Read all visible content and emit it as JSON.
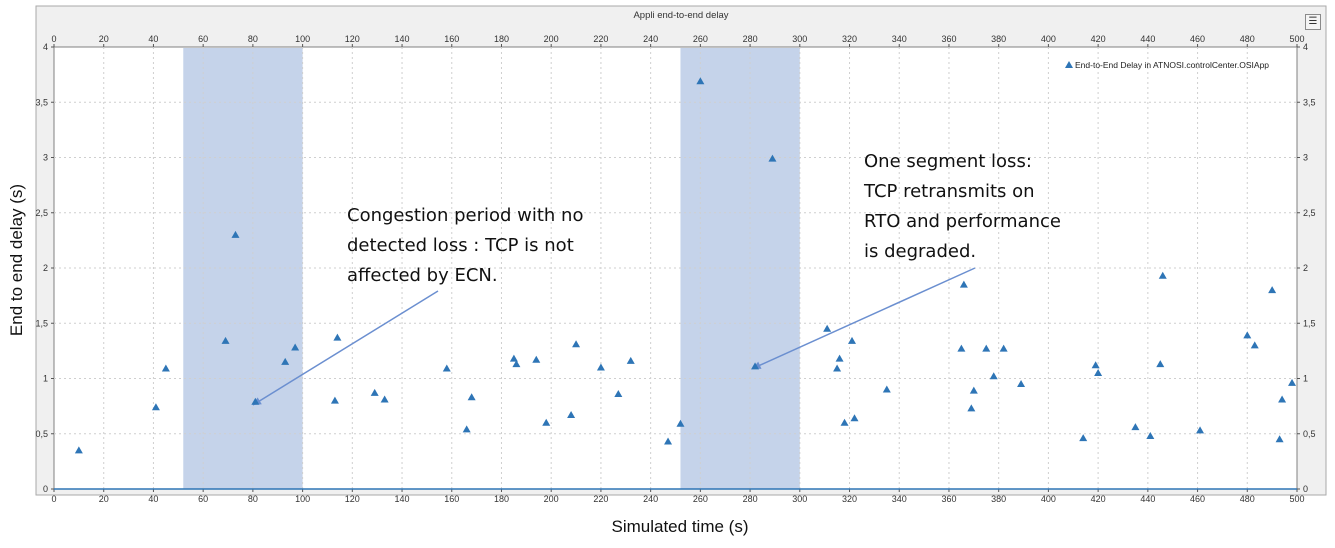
{
  "chart_data": {
    "type": "scatter",
    "title": "Appli end-to-end delay",
    "xlabel": "Simulated time (s)",
    "ylabel": "End to end delay (s)",
    "xlim": [
      0,
      500
    ],
    "ylim": [
      0,
      4
    ],
    "xticks": [
      "0",
      "20",
      "40",
      "60",
      "80",
      "100",
      "120",
      "140",
      "160",
      "180",
      "200",
      "220",
      "240",
      "260",
      "280",
      "300",
      "320",
      "340",
      "360",
      "380",
      "400",
      "420",
      "440",
      "460",
      "480",
      "500"
    ],
    "yticks": [
      "0",
      "0,5",
      "1",
      "1,5",
      "2",
      "2,5",
      "3",
      "3,5",
      "4"
    ],
    "grid": true,
    "legend_position": "top-right",
    "series": [
      {
        "name": "End-to-End Delay in ATNOSI.controlCenter.OSIApp",
        "color": "#2e75b6",
        "marker": "triangle",
        "points": [
          {
            "x": 10,
            "y": 0.35
          },
          {
            "x": 41,
            "y": 0.74
          },
          {
            "x": 45,
            "y": 1.09
          },
          {
            "x": 69,
            "y": 1.34
          },
          {
            "x": 73,
            "y": 2.3
          },
          {
            "x": 81,
            "y": 0.79
          },
          {
            "x": 93,
            "y": 1.15
          },
          {
            "x": 97,
            "y": 1.28
          },
          {
            "x": 113,
            "y": 0.8
          },
          {
            "x": 114,
            "y": 1.37
          },
          {
            "x": 129,
            "y": 0.87
          },
          {
            "x": 133,
            "y": 0.81
          },
          {
            "x": 158,
            "y": 1.09
          },
          {
            "x": 166,
            "y": 0.54
          },
          {
            "x": 168,
            "y": 0.83
          },
          {
            "x": 185,
            "y": 1.18
          },
          {
            "x": 186,
            "y": 1.13
          },
          {
            "x": 194,
            "y": 1.17
          },
          {
            "x": 198,
            "y": 0.6
          },
          {
            "x": 208,
            "y": 0.67
          },
          {
            "x": 210,
            "y": 1.31
          },
          {
            "x": 220,
            "y": 1.1
          },
          {
            "x": 227,
            "y": 0.86
          },
          {
            "x": 232,
            "y": 1.16
          },
          {
            "x": 247,
            "y": 0.43
          },
          {
            "x": 252,
            "y": 0.59
          },
          {
            "x": 260,
            "y": 3.69
          },
          {
            "x": 282,
            "y": 1.11
          },
          {
            "x": 289,
            "y": 2.99
          },
          {
            "x": 311,
            "y": 1.45
          },
          {
            "x": 315,
            "y": 1.09
          },
          {
            "x": 316,
            "y": 1.18
          },
          {
            "x": 318,
            "y": 0.6
          },
          {
            "x": 321,
            "y": 1.34
          },
          {
            "x": 322,
            "y": 0.64
          },
          {
            "x": 335,
            "y": 0.9
          },
          {
            "x": 365,
            "y": 1.27
          },
          {
            "x": 366,
            "y": 1.85
          },
          {
            "x": 369,
            "y": 0.73
          },
          {
            "x": 370,
            "y": 0.89
          },
          {
            "x": 375,
            "y": 1.27
          },
          {
            "x": 378,
            "y": 1.02
          },
          {
            "x": 382,
            "y": 1.27
          },
          {
            "x": 389,
            "y": 0.95
          },
          {
            "x": 414,
            "y": 0.46
          },
          {
            "x": 419,
            "y": 1.12
          },
          {
            "x": 420,
            "y": 1.05
          },
          {
            "x": 435,
            "y": 0.56
          },
          {
            "x": 441,
            "y": 0.48
          },
          {
            "x": 445,
            "y": 1.13
          },
          {
            "x": 446,
            "y": 1.93
          },
          {
            "x": 461,
            "y": 0.53
          },
          {
            "x": 480,
            "y": 1.39
          },
          {
            "x": 483,
            "y": 1.3
          },
          {
            "x": 490,
            "y": 1.8
          },
          {
            "x": 493,
            "y": 0.45
          },
          {
            "x": 494,
            "y": 0.81
          },
          {
            "x": 498,
            "y": 0.96
          }
        ]
      }
    ],
    "shaded_regions": [
      {
        "x0": 52,
        "x1": 100,
        "color": "#c5d3ea"
      },
      {
        "x0": 252,
        "x1": 300,
        "color": "#c5d3ea"
      }
    ],
    "annotations": [
      {
        "lines": [
          "Congestion period with no",
          "detected loss : TCP is not",
          "affected by ECN."
        ],
        "arrow_to": {
          "x": 80,
          "y": 0.76
        }
      },
      {
        "lines": [
          "One segment loss:",
          "TCP retransmits on",
          "RTO and performance",
          "is degraded."
        ],
        "arrow_to": {
          "x": 281,
          "y": 1.09
        }
      }
    ]
  },
  "ui": {
    "legend_button_icon": "list-icon"
  }
}
